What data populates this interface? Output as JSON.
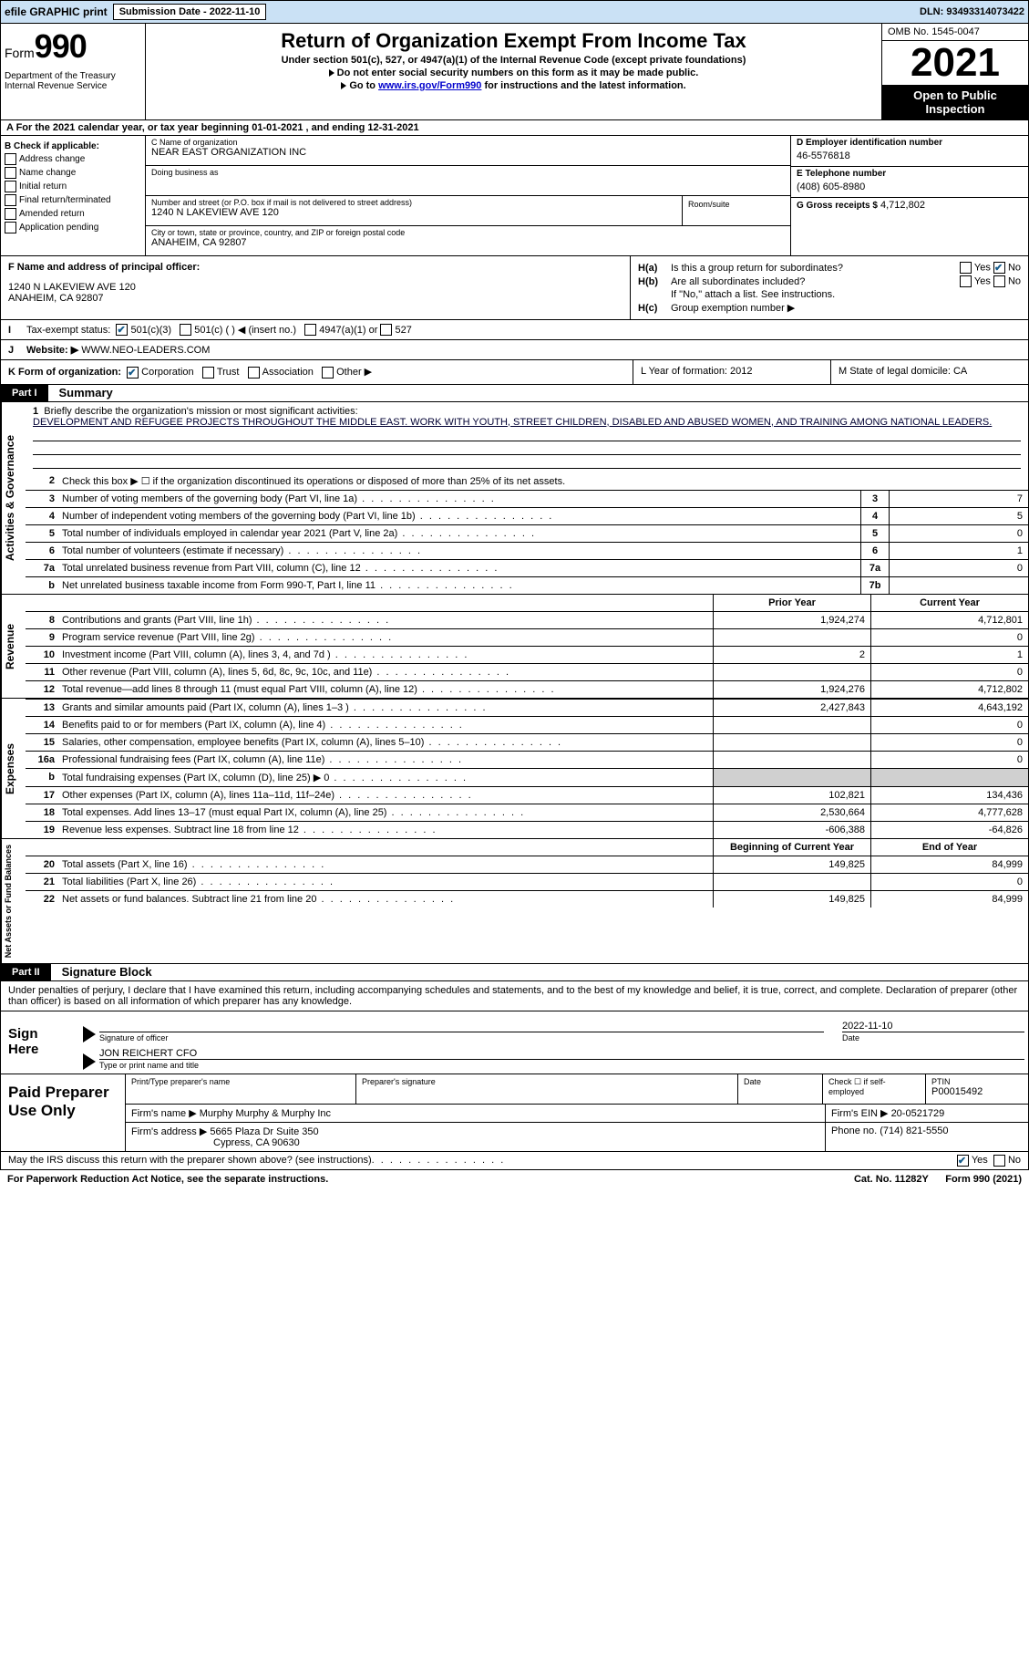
{
  "topbar": {
    "efile": "efile GRAPHIC print",
    "submission": "Submission Date - 2022-11-10",
    "dln": "DLN: 93493314073422"
  },
  "header": {
    "form_label": "Form",
    "form_number": "990",
    "dept": "Department of the Treasury Internal Revenue Service",
    "title": "Return of Organization Exempt From Income Tax",
    "sub1": "Under section 501(c), 527, or 4947(a)(1) of the Internal Revenue Code (except private foundations)",
    "sub2": "Do not enter social security numbers on this form as it may be made public.",
    "sub3_pre": "Go to ",
    "sub3_link": "www.irs.gov/Form990",
    "sub3_post": " for instructions and the latest information.",
    "omb": "OMB No. 1545-0047",
    "year": "2021",
    "open": "Open to Public Inspection"
  },
  "rowA": "A  For the 2021 calendar year, or tax year beginning 01-01-2021    , and ending 12-31-2021",
  "boxB": {
    "title": "B Check if applicable:",
    "items": [
      "Address change",
      "Name change",
      "Initial return",
      "Final return/terminated",
      "Amended return",
      "Application pending"
    ]
  },
  "boxC": {
    "name_label": "C Name of organization",
    "name": "NEAR EAST ORGANIZATION INC",
    "dba": "Doing business as",
    "street_label": "Number and street (or P.O. box if mail is not delivered to street address)",
    "street": "1240 N LAKEVIEW AVE 120",
    "room_label": "Room/suite",
    "city_label": "City or town, state or province, country, and ZIP or foreign postal code",
    "city": "ANAHEIM, CA  92807"
  },
  "boxD": {
    "ein_label": "D Employer identification number",
    "ein": "46-5576818",
    "phone_label": "E Telephone number",
    "phone": "(408) 605-8980",
    "gross_label": "G Gross receipts $",
    "gross": "4,712,802"
  },
  "boxF": {
    "label": "F  Name and address of principal officer:",
    "addr1": "1240 N LAKEVIEW AVE 120",
    "addr2": "ANAHEIM, CA  92807"
  },
  "boxH": {
    "a": "Is this a group return for subordinates?",
    "b": "Are all subordinates included?",
    "note": "If \"No,\" attach a list. See instructions.",
    "c": "Group exemption number ▶"
  },
  "yes": "Yes",
  "no": "No",
  "rowI": {
    "label": "Tax-exempt status:",
    "opt1": "501(c)(3)",
    "opt2": "501(c) (  ) ◀ (insert no.)",
    "opt3": "4947(a)(1) or",
    "opt4": "527"
  },
  "rowJ": {
    "label": "Website: ▶",
    "val": "WWW.NEO-LEADERS.COM"
  },
  "rowK": {
    "label": "K Form of organization:",
    "corp": "Corporation",
    "trust": "Trust",
    "assoc": "Association",
    "other": "Other ▶",
    "L": "L Year of formation: 2012",
    "M": "M State of legal domicile: CA"
  },
  "part1": {
    "tab": "Part I",
    "title": "Summary",
    "vtab1": "Activities & Governance",
    "vtab2": "Revenue",
    "vtab3": "Expenses",
    "vtab4": "Net Assets or Fund Balances",
    "l1_label": "Briefly describe the organization's mission or most significant activities:",
    "l1_text": "DEVELOPMENT AND REFUGEE PROJECTS THROUGHOUT THE MIDDLE EAST. WORK WITH YOUTH, STREET CHILDREN, DISABLED AND ABUSED WOMEN, AND TRAINING AMONG NATIONAL LEADERS.",
    "l2": "Check this box ▶ ☐ if the organization discontinued its operations or disposed of more than 25% of its net assets.",
    "lines": [
      {
        "n": "3",
        "d": "Number of voting members of the governing body (Part VI, line 1a)",
        "b": "3",
        "v": "7"
      },
      {
        "n": "4",
        "d": "Number of independent voting members of the governing body (Part VI, line 1b)",
        "b": "4",
        "v": "5"
      },
      {
        "n": "5",
        "d": "Total number of individuals employed in calendar year 2021 (Part V, line 2a)",
        "b": "5",
        "v": "0"
      },
      {
        "n": "6",
        "d": "Total number of volunteers (estimate if necessary)",
        "b": "6",
        "v": "1"
      },
      {
        "n": "7a",
        "d": "Total unrelated business revenue from Part VIII, column (C), line 12",
        "b": "7a",
        "v": "0"
      },
      {
        "n": "b",
        "d": "Net unrelated business taxable income from Form 990-T, Part I, line 11",
        "b": "7b",
        "v": ""
      }
    ],
    "prior": "Prior Year",
    "current": "Current Year",
    "revlines": [
      {
        "n": "8",
        "d": "Contributions and grants (Part VIII, line 1h)",
        "c1": "1,924,274",
        "c2": "4,712,801"
      },
      {
        "n": "9",
        "d": "Program service revenue (Part VIII, line 2g)",
        "c1": "",
        "c2": "0"
      },
      {
        "n": "10",
        "d": "Investment income (Part VIII, column (A), lines 3, 4, and 7d )",
        "c1": "2",
        "c2": "1"
      },
      {
        "n": "11",
        "d": "Other revenue (Part VIII, column (A), lines 5, 6d, 8c, 9c, 10c, and 11e)",
        "c1": "",
        "c2": "0"
      },
      {
        "n": "12",
        "d": "Total revenue—add lines 8 through 11 (must equal Part VIII, column (A), line 12)",
        "c1": "1,924,276",
        "c2": "4,712,802"
      }
    ],
    "explines": [
      {
        "n": "13",
        "d": "Grants and similar amounts paid (Part IX, column (A), lines 1–3 )",
        "c1": "2,427,843",
        "c2": "4,643,192"
      },
      {
        "n": "14",
        "d": "Benefits paid to or for members (Part IX, column (A), line 4)",
        "c1": "",
        "c2": "0"
      },
      {
        "n": "15",
        "d": "Salaries, other compensation, employee benefits (Part IX, column (A), lines 5–10)",
        "c1": "",
        "c2": "0"
      },
      {
        "n": "16a",
        "d": "Professional fundraising fees (Part IX, column (A), line 11e)",
        "c1": "",
        "c2": "0"
      },
      {
        "n": "b",
        "d": "Total fundraising expenses (Part IX, column (D), line 25) ▶ 0",
        "c1": "GRAY",
        "c2": "GRAY"
      },
      {
        "n": "17",
        "d": "Other expenses (Part IX, column (A), lines 11a–11d, 11f–24e)",
        "c1": "102,821",
        "c2": "134,436"
      },
      {
        "n": "18",
        "d": "Total expenses. Add lines 13–17 (must equal Part IX, column (A), line 25)",
        "c1": "2,530,664",
        "c2": "4,777,628"
      },
      {
        "n": "19",
        "d": "Revenue less expenses. Subtract line 18 from line 12",
        "c1": "-606,388",
        "c2": "-64,826"
      }
    ],
    "beg": "Beginning of Current Year",
    "end": "End of Year",
    "netlines": [
      {
        "n": "20",
        "d": "Total assets (Part X, line 16)",
        "c1": "149,825",
        "c2": "84,999"
      },
      {
        "n": "21",
        "d": "Total liabilities (Part X, line 26)",
        "c1": "",
        "c2": "0"
      },
      {
        "n": "22",
        "d": "Net assets or fund balances. Subtract line 21 from line 20",
        "c1": "149,825",
        "c2": "84,999"
      }
    ]
  },
  "part2": {
    "tab": "Part II",
    "title": "Signature Block",
    "decl": "Under penalties of perjury, I declare that I have examined this return, including accompanying schedules and statements, and to the best of my knowledge and belief, it is true, correct, and complete. Declaration of preparer (other than officer) is based on all information of which preparer has any knowledge.",
    "sign_here": "Sign Here",
    "sig_officer": "Signature of officer",
    "sig_date": "2022-11-10",
    "date": "Date",
    "officer_name": "JON REICHERT CFO",
    "type_name": "Type or print name and title",
    "paid": "Paid Preparer Use Only",
    "prep_name_label": "Print/Type preparer's name",
    "prep_sig_label": "Preparer's signature",
    "check_self": "Check ☐ if self-employed",
    "ptin_label": "PTIN",
    "ptin": "P00015492",
    "firm_name_label": "Firm's name   ▶",
    "firm_name": "Murphy Murphy & Murphy Inc",
    "firm_ein_label": "Firm's EIN ▶",
    "firm_ein": "20-0521729",
    "firm_addr_label": "Firm's address ▶",
    "firm_addr1": "5665 Plaza Dr Suite 350",
    "firm_addr2": "Cypress, CA  90630",
    "phone_label": "Phone no.",
    "phone": "(714) 821-5550",
    "may_discuss": "May the IRS discuss this return with the preparer shown above? (see instructions)"
  },
  "footer": {
    "pra": "For Paperwork Reduction Act Notice, see the separate instructions.",
    "cat": "Cat. No. 11282Y",
    "form": "Form 990 (2021)"
  }
}
